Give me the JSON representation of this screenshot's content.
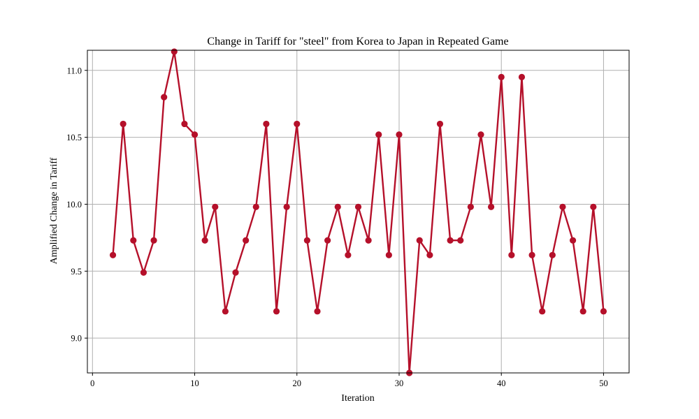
{
  "chart_data": {
    "type": "line",
    "title": "Change in Tariff for \"steel\" from Korea to Japan in Repeated Game",
    "xlabel": "Iteration",
    "ylabel": "Amplified Change in Tariff",
    "xlim": [
      -0.5,
      52.5
    ],
    "ylim": [
      8.74,
      11.15
    ],
    "xticks": [
      0,
      10,
      20,
      30,
      40,
      50
    ],
    "yticks": [
      9.0,
      9.5,
      10.0,
      10.5,
      11.0
    ],
    "grid": true,
    "color": "#b5102a",
    "series": [
      {
        "x": [
          2,
          3,
          4,
          5,
          6,
          7,
          8,
          9,
          10,
          11,
          12,
          13,
          14,
          15,
          16,
          17,
          18,
          19,
          20,
          21,
          22,
          23,
          24,
          25,
          26,
          27,
          28,
          29,
          30,
          31,
          32,
          33,
          34,
          35,
          36,
          37,
          38,
          39,
          40,
          41,
          42,
          43,
          44,
          45,
          46,
          47,
          48,
          49,
          50
        ],
        "values": [
          9.62,
          10.6,
          9.73,
          9.49,
          9.73,
          10.8,
          11.14,
          10.6,
          10.52,
          9.73,
          9.98,
          9.2,
          9.49,
          9.73,
          9.98,
          10.6,
          9.2,
          9.98,
          10.6,
          9.73,
          9.2,
          9.73,
          9.98,
          9.62,
          9.98,
          9.73,
          10.52,
          9.62,
          10.52,
          8.74,
          9.73,
          9.62,
          10.6,
          9.73,
          9.73,
          9.98,
          10.52,
          9.98,
          10.95,
          9.62,
          10.95,
          9.62,
          9.2,
          9.62,
          9.98,
          9.73,
          9.2,
          9.98,
          9.2
        ]
      }
    ]
  }
}
